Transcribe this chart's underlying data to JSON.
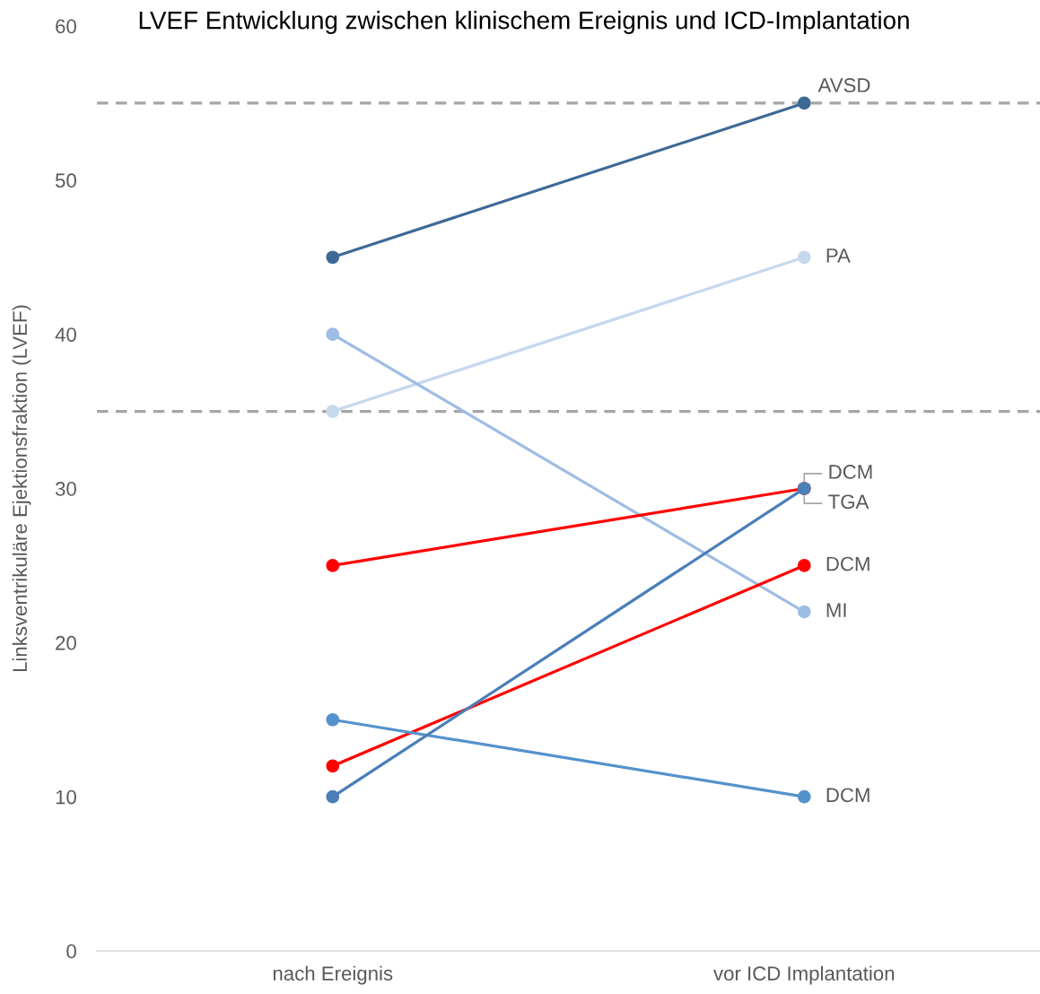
{
  "chart_data": {
    "type": "line",
    "title": "LVEF Entwicklung zwischen klinischem Ereignis und ICD-Implantation",
    "ylabel": "Linksventrikuläre Ejektionsfraktion (LVEF)",
    "categories": [
      "nach Ereignis",
      "vor ICD Implantation"
    ],
    "series": [
      {
        "name": "AVSD",
        "color": "#3e6996",
        "values": [
          45,
          55
        ]
      },
      {
        "name": "PA",
        "color": "#c5d8ee",
        "values": [
          35,
          45
        ]
      },
      {
        "name": "MI",
        "color": "#9ebde3",
        "values": [
          40,
          22
        ]
      },
      {
        "name": "DCM",
        "color": "#ff0000",
        "values": [
          25,
          30
        ]
      },
      {
        "name": "DCM",
        "color": "#ff0000",
        "values": [
          12,
          25
        ]
      },
      {
        "name": "DCM",
        "color": "#5592cc",
        "values": [
          15,
          10
        ]
      },
      {
        "name": "TGA",
        "color": "#4a7fb8",
        "values": [
          10,
          30
        ]
      }
    ],
    "ylim": [
      0,
      60
    ],
    "yticks": [
      0,
      10,
      20,
      30,
      40,
      50,
      60
    ],
    "ref_lines": [
      {
        "axis": "y",
        "value": 55,
        "color": "#a6a6a6",
        "line_style": "dashed"
      },
      {
        "axis": "y",
        "value": 35,
        "color": "#a6a6a6",
        "line_style": "dashed"
      }
    ],
    "marker": "circle",
    "line_style": "solid"
  }
}
